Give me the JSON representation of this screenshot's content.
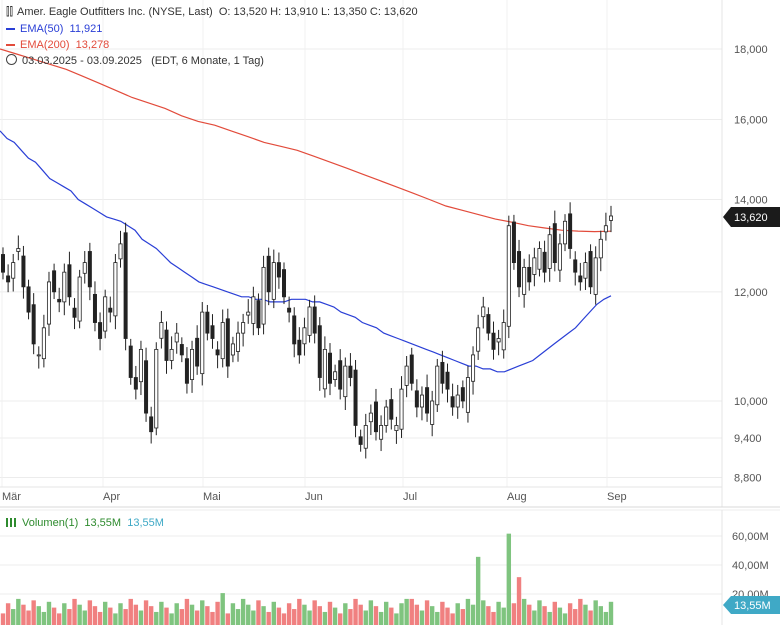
{
  "header": {
    "title": "Amer. Eagle Outfitters Inc. (NYSE, Last)",
    "ohlc": "O: 13,520  H: 13,910  L: 13,350  C: 13,620",
    "ema50_label": "EMA(50)",
    "ema50_value": "11,921",
    "ema200_label": "EMA(200)",
    "ema200_value": "13,278",
    "range": "03.03.2025 - 03.09.2025",
    "range_note": "(EDT, 6 Monate, 1 Tag)"
  },
  "volume_header": {
    "label": "Volumen(1)",
    "value1": "13,55M",
    "value2": "13,55M"
  },
  "colors": {
    "up": "#2e8b2e",
    "down": "#c0392b",
    "ema50": "#2a3fd6",
    "ema200": "#e24b3b",
    "last_price_tag": "#1b1b1b",
    "volume_tag": "#3fa9c6",
    "vol_up": "#7fc47f",
    "vol_down": "#f08080"
  },
  "chart_data": {
    "type": "candlestick",
    "date_range": [
      "03.03.2025",
      "03.09.2025"
    ],
    "x_tick_labels": [
      "Mär",
      "Apr",
      "Mai",
      "Jun",
      "Jul",
      "Aug",
      "Sep"
    ],
    "y_tick_labels": [
      "18,000",
      "16,000",
      "14,000",
      "12,000",
      "10,000",
      "9,400",
      "8,800"
    ],
    "y_ticks": [
      18.0,
      16.0,
      14.0,
      12.0,
      10.0,
      9.4,
      8.8
    ],
    "y_scale": "log",
    "last_price": 13.62,
    "last_price_label": "13,620",
    "close": [
      12.4,
      12.2,
      12.6,
      12.9,
      12.1,
      11.6,
      11.0,
      10.8,
      11.3,
      12.2,
      12.0,
      11.8,
      12.4,
      11.9,
      11.5,
      12.3,
      12.6,
      12.1,
      11.4,
      11.1,
      11.9,
      11.6,
      12.6,
      13.0,
      11.1,
      10.4,
      10.2,
      10.9,
      9.8,
      9.5,
      10.9,
      11.4,
      10.7,
      10.9,
      11.2,
      10.8,
      10.3,
      10.9,
      10.6,
      11.6,
      11.2,
      11.1,
      10.8,
      11.4,
      10.6,
      11.0,
      11.2,
      11.4,
      11.6,
      11.9,
      11.3,
      12.5,
      12.0,
      12.6,
      12.3,
      11.9,
      11.6,
      11.0,
      10.8,
      11.3,
      11.7,
      11.2,
      10.4,
      10.9,
      10.3,
      10.5,
      10.2,
      10.6,
      10.4,
      9.6,
      9.3,
      9.6,
      9.8,
      9.5,
      9.6,
      9.9,
      9.7,
      9.6,
      10.2,
      10.6,
      10.3,
      9.9,
      10.1,
      9.8,
      10.0,
      10.6,
      10.3,
      10.2,
      9.9,
      10.1,
      10.0,
      10.4,
      10.8,
      11.3,
      11.7,
      11.2,
      10.9,
      11.1,
      11.4,
      13.4,
      12.6,
      12.1,
      12.5,
      12.2,
      12.7,
      12.9,
      12.4,
      13.2,
      12.6,
      13.0,
      13.5,
      12.9,
      12.4,
      12.2,
      12.6,
      12.1,
      12.7,
      13.1,
      13.4,
      13.62
    ],
    "ema50": [
      15.7,
      15.5,
      15.4,
      15.2,
      15.0,
      14.9,
      14.7,
      14.5,
      14.4,
      14.3,
      14.2,
      14.0,
      13.9,
      13.8,
      13.7,
      13.6,
      13.55,
      13.5,
      13.4,
      13.3,
      13.1,
      13.0,
      12.9,
      12.75,
      12.6,
      12.5,
      12.4,
      12.3,
      12.2,
      12.15,
      12.1,
      12.05,
      12.0,
      11.95,
      11.9,
      11.9,
      11.85,
      11.85,
      11.8,
      11.8,
      11.8,
      11.85,
      11.85,
      11.85,
      11.8,
      11.8,
      11.75,
      11.7,
      11.6,
      11.55,
      11.5,
      11.4,
      11.35,
      11.3,
      11.2,
      11.15,
      11.1,
      11.05,
      11.0,
      10.95,
      10.9,
      10.85,
      10.8,
      10.75,
      10.7,
      10.65,
      10.6,
      10.6,
      10.55,
      10.55,
      10.5,
      10.5,
      10.55,
      10.6,
      10.65,
      10.7,
      10.8,
      10.9,
      11.0,
      11.1,
      11.2,
      11.3,
      11.45,
      11.6,
      11.75,
      11.85,
      11.921
    ],
    "ema200": [
      18.0,
      17.85,
      17.7,
      17.55,
      17.4,
      17.2,
      17.0,
      16.8,
      16.6,
      16.45,
      16.3,
      16.1,
      15.95,
      15.85,
      15.7,
      15.55,
      15.4,
      15.3,
      15.2,
      15.05,
      14.9,
      14.75,
      14.6,
      14.45,
      14.3,
      14.15,
      14.0,
      13.85,
      13.75,
      13.65,
      13.55,
      13.48,
      13.4,
      13.35,
      13.3,
      13.28,
      13.27,
      13.278
    ]
  }
}
